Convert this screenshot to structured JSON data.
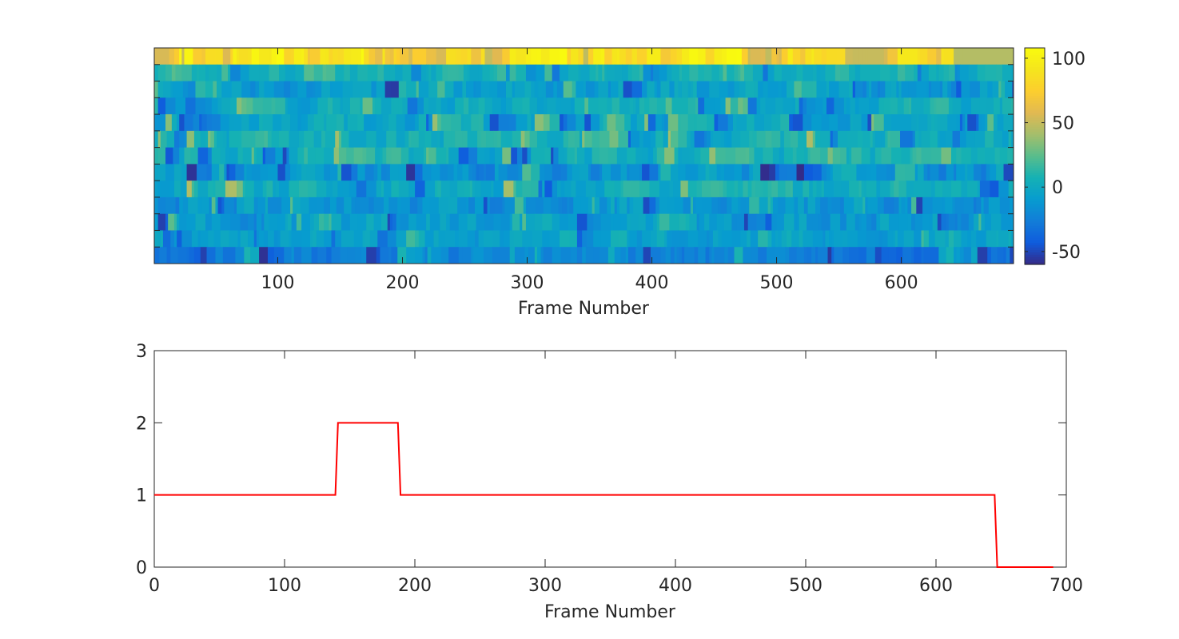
{
  "chart_data": [
    {
      "type": "heatmap",
      "xlabel": "Frame Number",
      "xlim": [
        1,
        690
      ],
      "x_ticks": [
        100,
        200,
        300,
        400,
        500,
        600
      ],
      "rows": 13,
      "colorbar": {
        "ticks": [
          100,
          50,
          0,
          -50
        ],
        "range": [
          -60,
          108
        ],
        "colormap": "parula"
      },
      "row_profiles": [
        {
          "base": 82,
          "amp": 22,
          "min": 45,
          "max": 108,
          "seed": 11,
          "segments": [
            [
              1,
              12,
              55
            ],
            [
              560,
              585,
              50
            ],
            [
              640,
              690,
              45
            ]
          ]
        },
        {
          "base": 6,
          "amp": 9,
          "min": -30,
          "max": 30,
          "seed": 23
        },
        {
          "base": -8,
          "amp": 14,
          "min": -55,
          "max": 25,
          "seed": 37
        },
        {
          "base": 2,
          "amp": 11,
          "min": -45,
          "max": 35,
          "seed": 41
        },
        {
          "base": -4,
          "amp": 14,
          "min": -50,
          "max": 40,
          "seed": 53
        },
        {
          "base": 4,
          "amp": 12,
          "min": -40,
          "max": 45,
          "seed": 67
        },
        {
          "base": 6,
          "amp": 13,
          "min": -50,
          "max": 40,
          "seed": 71
        },
        {
          "base": -12,
          "amp": 16,
          "min": -60,
          "max": 25,
          "seed": 83
        },
        {
          "base": 2,
          "amp": 12,
          "min": -45,
          "max": 45,
          "seed": 97
        },
        {
          "base": -12,
          "amp": 15,
          "min": -60,
          "max": 25,
          "seed": 101
        },
        {
          "base": -10,
          "amp": 14,
          "min": -55,
          "max": 25,
          "seed": 113
        },
        {
          "base": -6,
          "amp": 10,
          "min": -45,
          "max": 20,
          "seed": 127
        },
        {
          "base": -25,
          "amp": 12,
          "min": -60,
          "max": 10,
          "seed": 131
        }
      ]
    },
    {
      "type": "line",
      "xlabel": "Frame Number",
      "xlim": [
        0,
        700
      ],
      "ylim": [
        0,
        3
      ],
      "x_ticks": [
        0,
        100,
        200,
        300,
        400,
        500,
        600,
        700
      ],
      "y_ticks": [
        0,
        1,
        2,
        3
      ],
      "series": [
        {
          "color": "#ff0000",
          "x": [
            0,
            139,
            141,
            187,
            189,
            645,
            647,
            690
          ],
          "y": [
            1,
            1,
            2,
            2,
            1,
            1,
            0,
            0
          ]
        }
      ]
    }
  ]
}
